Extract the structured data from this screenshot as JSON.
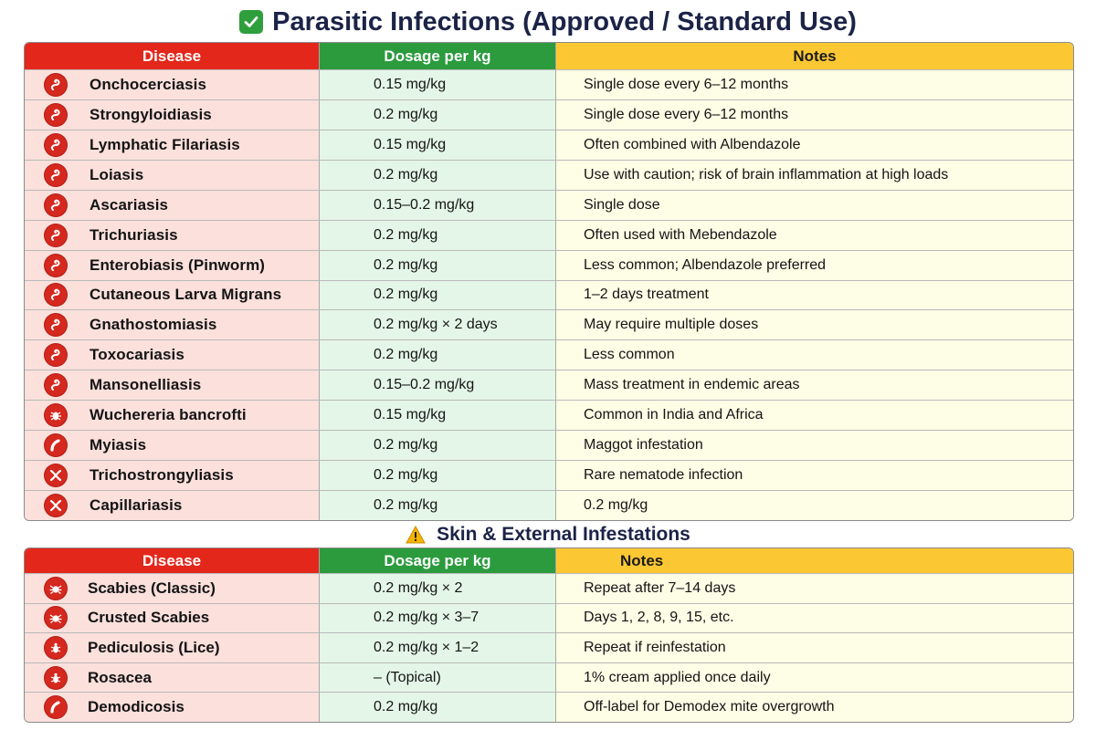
{
  "title": "Parasitic Infections (Approved / Standard Use)",
  "subtitle": "Skin & External Infestations",
  "colors": {
    "header_red": "#e3271b",
    "header_green": "#2c9b3e",
    "header_yellow": "#fbc834",
    "title_navy": "#1b2347",
    "icon_red": "#d5281e"
  },
  "table1": {
    "headers": [
      "Disease",
      "Dosage per kg",
      "Notes"
    ],
    "rows": [
      {
        "icon": "worm-icon",
        "disease": "Onchocerciasis",
        "dosage": "0.15 mg/kg",
        "notes": "Single dose every 6–12 months"
      },
      {
        "icon": "worm-icon",
        "disease": "Strongyloidiasis",
        "dosage": "0.2 mg/kg",
        "notes": "Single dose every 6–12 months"
      },
      {
        "icon": "worm-icon",
        "disease": "Lymphatic Filariasis",
        "dosage": "0.15 mg/kg",
        "notes": "Often combined with Albendazole"
      },
      {
        "icon": "worm-icon",
        "disease": "Loiasis",
        "dosage": "0.2 mg/kg",
        "notes": "Use with caution; risk of brain inflammation at high loads"
      },
      {
        "icon": "worm-icon",
        "disease": "Ascariasis",
        "dosage": "0.15–0.2 mg/kg",
        "notes": "Single dose"
      },
      {
        "icon": "worm-icon",
        "disease": "Trichuriasis",
        "dosage": "0.2 mg/kg",
        "notes": "Often used with Mebendazole"
      },
      {
        "icon": "worm-icon",
        "disease": "Enterobiasis (Pinworm)",
        "dosage": "0.2 mg/kg",
        "notes": "Less common; Albendazole preferred"
      },
      {
        "icon": "worm-icon",
        "disease": "Cutaneous Larva Migrans",
        "dosage": "0.2 mg/kg",
        "notes": "1–2 days treatment"
      },
      {
        "icon": "worm-icon",
        "disease": "Gnathostomiasis",
        "dosage": "0.2 mg/kg × 2 days",
        "notes": "May require multiple doses"
      },
      {
        "icon": "worm-icon",
        "disease": "Toxocariasis",
        "dosage": "0.2 mg/kg",
        "notes": "Less common"
      },
      {
        "icon": "worm-icon",
        "disease": "Mansonelliasis",
        "dosage": "0.15–0.2 mg/kg",
        "notes": "Mass treatment in endemic areas"
      },
      {
        "icon": "bug-icon",
        "disease": "Wuchereria bancrofti",
        "dosage": "0.15 mg/kg",
        "notes": "Common in India and Africa"
      },
      {
        "icon": "larva-icon",
        "disease": "Myiasis",
        "dosage": "0.2 mg/kg",
        "notes": "Maggot infestation"
      },
      {
        "icon": "cross-worm-icon",
        "disease": "Trichostrongyliasis",
        "dosage": "0.2 mg/kg",
        "notes": "Rare nematode infection"
      },
      {
        "icon": "cross-worm-icon",
        "disease": "Capillariasis",
        "dosage": "0.2 mg/kg",
        "notes": "0.2 mg/kg"
      }
    ]
  },
  "table2": {
    "headers": [
      "Disease",
      "Dosage per kg",
      "Notes"
    ],
    "rows": [
      {
        "icon": "mite-icon",
        "disease": "Scabies (Classic)",
        "dosage": "0.2 mg/kg × 2",
        "notes": "Repeat after 7–14 days"
      },
      {
        "icon": "mite-icon",
        "disease": "Crusted Scabies",
        "dosage": "0.2 mg/kg × 3–7",
        "notes": "Days 1, 2, 8, 9, 15, etc."
      },
      {
        "icon": "louse-icon",
        "disease": "Pediculosis (Lice)",
        "dosage": "0.2 mg/kg × 1–2",
        "notes": "Repeat if reinfestation"
      },
      {
        "icon": "louse-icon",
        "disease": "Rosacea",
        "dosage": "– (Topical)",
        "notes": "1% cream applied once daily"
      },
      {
        "icon": "larva-icon",
        "disease": "Demodicosis",
        "dosage": "0.2 mg/kg",
        "notes": "Off-label for Demodex mite overgrowth"
      }
    ]
  }
}
